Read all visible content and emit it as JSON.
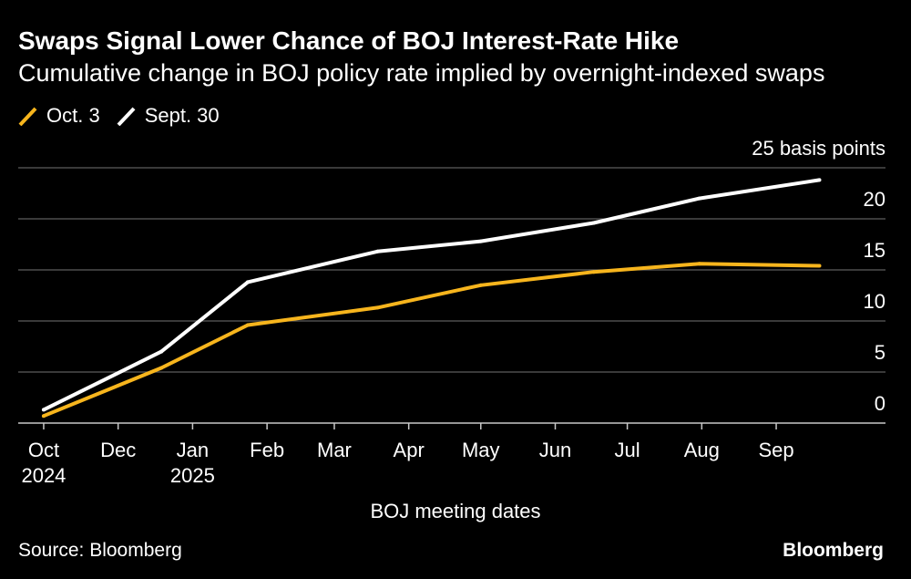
{
  "chart_data": {
    "type": "line",
    "title": "Swaps Signal Lower Chance of BOJ Interest-Rate Hike",
    "subtitle": "Cumulative change in BOJ policy rate implied by overnight-indexed swaps",
    "xlabel": "BOJ meeting dates",
    "grid": true,
    "legend_position": "top-left",
    "xlim": [
      -10.6,
      350.5
    ],
    "ylim": [
      0,
      25
    ],
    "x_days": [
      0,
      49,
      85,
      139,
      182,
      229,
      273,
      323
    ],
    "series": [
      {
        "name": "Oct. 3",
        "color": "#F7B51D",
        "values": [
          0.7,
          5.4,
          9.6,
          11.3,
          13.5,
          14.8,
          15.6,
          15.4
        ]
      },
      {
        "name": "Sept. 30",
        "color": "#FFFFFF",
        "values": [
          1.3,
          7.0,
          13.8,
          16.8,
          17.8,
          19.6,
          22.0,
          23.8
        ]
      }
    ],
    "x_ticks": [
      {
        "x": 0,
        "label": "Oct",
        "year": "2024"
      },
      {
        "x": 31,
        "label": "Dec"
      },
      {
        "x": 62,
        "label": "Jan",
        "year": "2025"
      },
      {
        "x": 93,
        "label": "Feb"
      },
      {
        "x": 121,
        "label": "Mar"
      },
      {
        "x": 152,
        "label": "Apr"
      },
      {
        "x": 182,
        "label": "May"
      },
      {
        "x": 213,
        "label": "Jun"
      },
      {
        "x": 243,
        "label": "Jul"
      },
      {
        "x": 274,
        "label": "Aug"
      },
      {
        "x": 305,
        "label": "Sep"
      }
    ],
    "y_ticks": [
      {
        "value": 0,
        "label": "0"
      },
      {
        "value": 5,
        "label": "5"
      },
      {
        "value": 10,
        "label": "10"
      },
      {
        "value": 15,
        "label": "15"
      },
      {
        "value": 20,
        "label": "20"
      },
      {
        "value": 25,
        "label": "25 basis points"
      }
    ]
  },
  "footer": {
    "source": "Source: Bloomberg",
    "brand": "Bloomberg"
  }
}
